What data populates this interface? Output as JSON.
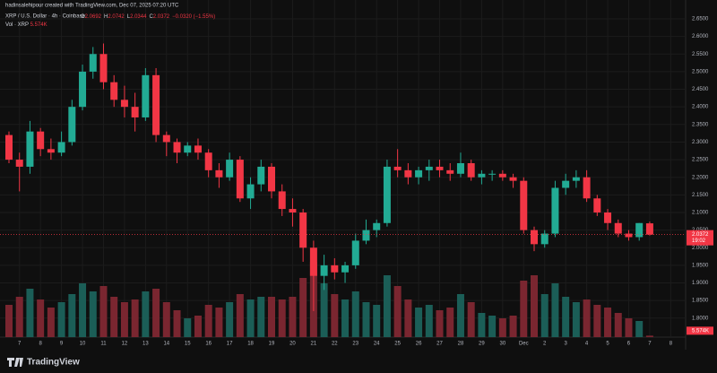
{
  "header": {
    "credit": "hadinsalehipour created with TradingView.com, Dec 07, 2025 07:20 UTC",
    "symbol": "XRP / U.S. Dollar · 4h · Coinbase",
    "ohlc_letters": [
      "O",
      "H",
      "L",
      "C"
    ],
    "change": "−0.0320 (−1.55%)",
    "volume_title": "Vol · XRP",
    "countdown": "19:02"
  },
  "footer": {
    "brand": "TradingView"
  },
  "chart_data": {
    "type": "candlestick",
    "categories": [
      null,
      "7",
      null,
      "8",
      null,
      "9",
      null,
      "10",
      null,
      "11",
      null,
      "12",
      null,
      "13",
      null,
      "14",
      null,
      "15",
      null,
      "16",
      null,
      "17",
      null,
      "18",
      null,
      "19",
      null,
      "20",
      null,
      "21",
      null,
      "22",
      null,
      "23",
      null,
      "24",
      null,
      "25",
      null,
      "26",
      null,
      "27",
      null,
      "28",
      null,
      "29",
      null,
      "30",
      null,
      "Dec",
      null,
      "2",
      null,
      "3",
      null,
      "4",
      null,
      "5",
      null,
      "6",
      null,
      "7",
      null,
      "8"
    ],
    "open": [
      2.32,
      2.25,
      2.23,
      2.33,
      2.28,
      2.27,
      2.3,
      2.4,
      2.5,
      2.55,
      2.47,
      2.42,
      2.4,
      2.37,
      2.49,
      2.32,
      2.3,
      2.27,
      2.29,
      2.27,
      2.22,
      2.2,
      2.25,
      2.14,
      2.18,
      2.23,
      2.16,
      2.11,
      2.1,
      2.0,
      1.92,
      1.95,
      1.93,
      1.95,
      2.02,
      2.05,
      2.07,
      2.23,
      2.22,
      2.2,
      2.22,
      2.23,
      2.22,
      2.21,
      2.24,
      2.2,
      2.21,
      2.21,
      2.2,
      2.19,
      2.05,
      2.01,
      2.04,
      2.17,
      2.19,
      2.2,
      2.14,
      2.1,
      2.07,
      2.04,
      2.03,
      2.0692,
      null,
      null
    ],
    "high": [
      2.33,
      2.27,
      2.36,
      2.34,
      2.31,
      2.33,
      2.42,
      2.52,
      2.57,
      2.58,
      2.49,
      2.46,
      2.44,
      2.51,
      2.51,
      2.33,
      2.31,
      2.3,
      2.31,
      2.28,
      2.24,
      2.27,
      2.26,
      2.2,
      2.25,
      2.24,
      2.18,
      2.14,
      2.11,
      2.02,
      1.98,
      1.97,
      1.96,
      2.04,
      2.08,
      2.08,
      2.25,
      2.28,
      2.24,
      2.23,
      2.25,
      2.25,
      2.24,
      2.27,
      2.25,
      2.22,
      2.22,
      2.22,
      2.21,
      2.2,
      2.06,
      2.05,
      2.19,
      2.21,
      2.22,
      2.22,
      2.15,
      2.11,
      2.08,
      2.05,
      2.07,
      2.0742,
      null,
      null
    ],
    "low": [
      2.24,
      2.16,
      2.21,
      2.26,
      2.25,
      2.26,
      2.29,
      2.39,
      2.48,
      2.45,
      2.4,
      2.37,
      2.33,
      2.36,
      2.3,
      2.26,
      2.24,
      2.26,
      2.25,
      2.2,
      2.17,
      2.19,
      2.13,
      2.11,
      2.16,
      2.14,
      2.09,
      2.06,
      1.96,
      1.82,
      1.88,
      1.91,
      1.9,
      1.94,
      2.01,
      2.03,
      2.06,
      2.2,
      2.18,
      2.18,
      2.19,
      2.2,
      2.19,
      2.2,
      2.19,
      2.18,
      2.19,
      2.19,
      2.17,
      2.04,
      1.99,
      2.0,
      2.03,
      2.15,
      2.17,
      2.13,
      2.09,
      2.05,
      2.03,
      2.02,
      2.02,
      2.0344,
      null,
      null
    ],
    "close": [
      2.25,
      2.23,
      2.33,
      2.28,
      2.27,
      2.3,
      2.4,
      2.5,
      2.55,
      2.47,
      2.42,
      2.4,
      2.37,
      2.49,
      2.32,
      2.3,
      2.27,
      2.29,
      2.27,
      2.22,
      2.2,
      2.25,
      2.14,
      2.18,
      2.23,
      2.16,
      2.11,
      2.1,
      2.0,
      1.92,
      1.95,
      1.93,
      1.95,
      2.02,
      2.05,
      2.07,
      2.23,
      2.22,
      2.2,
      2.22,
      2.23,
      2.22,
      2.21,
      2.24,
      2.2,
      2.21,
      2.21,
      2.2,
      2.19,
      2.05,
      2.01,
      2.04,
      2.17,
      2.19,
      2.2,
      2.14,
      2.1,
      2.07,
      2.04,
      2.03,
      2.07,
      2.0372,
      null,
      null
    ],
    "volume": [
      120,
      150,
      180,
      140,
      110,
      130,
      160,
      200,
      170,
      190,
      150,
      130,
      140,
      170,
      180,
      130,
      100,
      70,
      80,
      120,
      110,
      130,
      160,
      140,
      150,
      150,
      140,
      150,
      220,
      280,
      200,
      160,
      140,
      170,
      130,
      120,
      230,
      190,
      140,
      110,
      120,
      100,
      110,
      160,
      130,
      90,
      80,
      70,
      80,
      210,
      230,
      160,
      200,
      150,
      130,
      140,
      120,
      110,
      90,
      70,
      60,
      5.574,
      null,
      null
    ],
    "volume_last_label": "5.574K",
    "volume_lim": [
      0,
      300
    ],
    "up_color": "#22ab94",
    "down_color": "#f23645",
    "volume_up_color": "#1b5e57",
    "volume_down_color": "#7a2630",
    "ylim": [
      1.746,
      2.678
    ],
    "yticks": [
      {
        "value": 1.8,
        "label": "1.8000"
      },
      {
        "value": 1.85,
        "label": "1.8500"
      },
      {
        "value": 1.9,
        "label": "1.9000"
      },
      {
        "value": 1.95,
        "label": "1.9500"
      },
      {
        "value": 2.0,
        "label": "2.0000"
      },
      {
        "value": 2.05,
        "label": "2.0500"
      },
      {
        "value": 2.1,
        "label": "2.1000"
      },
      {
        "value": 2.15,
        "label": "2.1500"
      },
      {
        "value": 2.2,
        "label": "2.2000"
      },
      {
        "value": 2.25,
        "label": "2.2500"
      },
      {
        "value": 2.3,
        "label": "2.3000"
      },
      {
        "value": 2.35,
        "label": "2.3500"
      },
      {
        "value": 2.4,
        "label": "2.4000"
      },
      {
        "value": 2.45,
        "label": "2.4500"
      },
      {
        "value": 2.5,
        "label": "2.5000"
      },
      {
        "value": 2.55,
        "label": "2.5500"
      },
      {
        "value": 2.6,
        "label": "2.6000"
      },
      {
        "value": 2.65,
        "label": "2.6500"
      }
    ],
    "grid": true
  }
}
